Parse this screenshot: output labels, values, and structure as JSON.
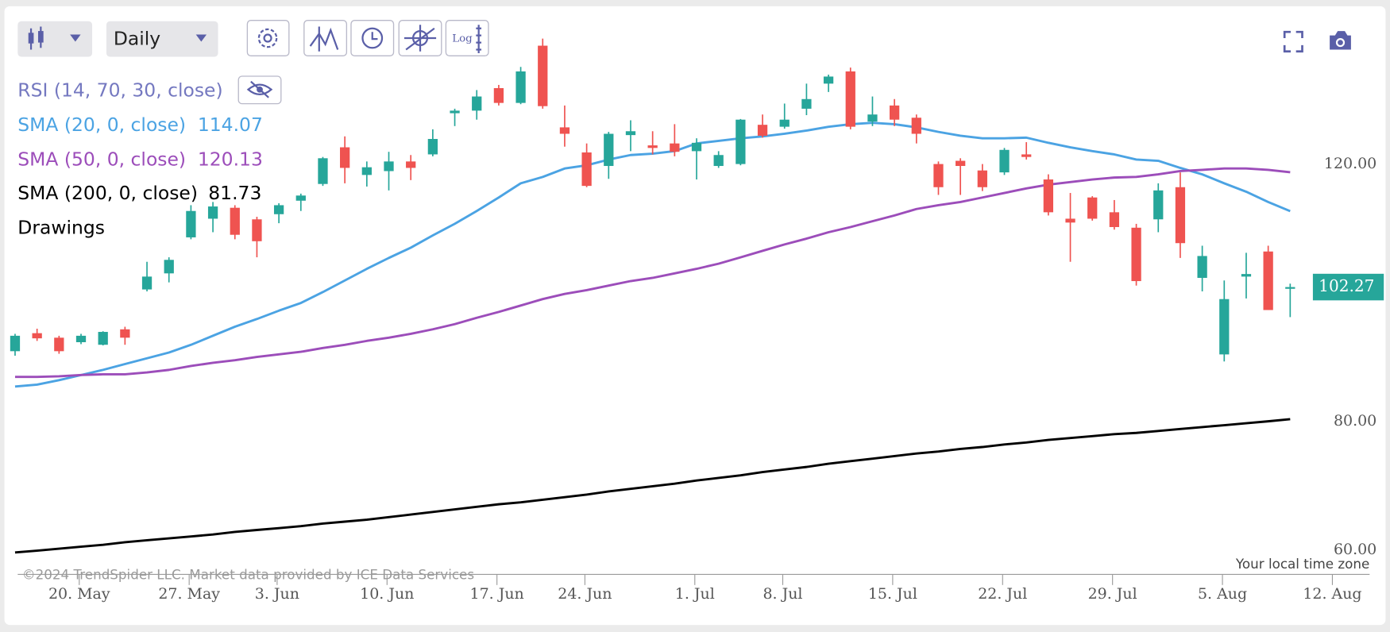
{
  "toolbar": {
    "interval": "Daily",
    "log_button": "Log"
  },
  "chart_data": {
    "type": "candlestick",
    "watermark": "©2024 TrendSpider LLC. Market data provided by ICE Data Services",
    "timezone_note": "Your local time zone",
    "rsi_label": "RSI (14, 70, 30, close)",
    "drawings_label": "Drawings",
    "up_color": "#26a69a",
    "down_color": "#ef5350",
    "categories": [
      null,
      null,
      null,
      "20. May",
      null,
      null,
      null,
      null,
      "27. May",
      null,
      null,
      null,
      "3. Jun",
      null,
      null,
      null,
      null,
      "10. Jun",
      null,
      null,
      null,
      null,
      "17. Jun",
      null,
      null,
      null,
      "24. Jun",
      null,
      null,
      null,
      null,
      "1. Jul",
      null,
      null,
      null,
      "8. Jul",
      null,
      null,
      null,
      null,
      "15. Jul",
      null,
      null,
      null,
      null,
      "22. Jul",
      null,
      null,
      null,
      null,
      "29. Jul",
      null,
      null,
      null,
      null,
      "5. Aug",
      null,
      null,
      null,
      null,
      "12. Aug"
    ],
    "open": [
      92.3,
      95.1,
      94.4,
      93.7,
      93.3,
      95.7,
      101.9,
      104.4,
      110.0,
      112.9,
      114.6,
      112.8,
      113.6,
      115.7,
      118.3,
      124.0,
      119.7,
      120.3,
      121.8,
      122.9,
      129.3,
      129.7,
      133.2,
      130.9,
      139.8,
      127.1,
      123.2,
      121.1,
      125.9,
      124.3,
      124.6,
      123.4,
      121.1,
      121.4,
      127.5,
      127.2,
      130.0,
      133.9,
      135.8,
      128.0,
      130.5,
      128.6,
      121.4,
      121.9,
      120.4,
      120.1,
      122.9,
      119.0,
      112.9,
      116.2,
      113.9,
      111.5,
      112.8,
      117.8,
      103.7,
      91.8,
      103.9,
      107.8,
      102.0,
      null,
      null
    ],
    "high": [
      95.0,
      95.8,
      94.7,
      95.0,
      95.4,
      96.1,
      106.2,
      106.9,
      115.0,
      115.5,
      115.0,
      113.2,
      115.3,
      116.8,
      122.5,
      125.7,
      121.8,
      123.3,
      122.8,
      126.8,
      130.0,
      132.9,
      133.7,
      136.5,
      140.9,
      130.5,
      124.6,
      126.4,
      128.2,
      126.5,
      127.6,
      125.4,
      123.4,
      128.4,
      129.1,
      130.8,
      133.9,
      135.3,
      136.4,
      131.9,
      131.5,
      129.1,
      121.8,
      122.3,
      121.4,
      123.9,
      124.8,
      119.8,
      116.9,
      116.4,
      115.8,
      112.1,
      118.4,
      120.1,
      108.7,
      103.3,
      107.6,
      108.7,
      102.8,
      null,
      null
    ],
    "low": [
      91.6,
      93.9,
      91.9,
      93.4,
      93.2,
      93.3,
      101.6,
      103.0,
      109.7,
      110.8,
      109.7,
      106.9,
      112.2,
      114.1,
      118.0,
      118.4,
      117.9,
      117.3,
      118.9,
      122.6,
      127.3,
      128.3,
      130.5,
      130.7,
      130.0,
      124.1,
      117.8,
      119.1,
      123.4,
      122.9,
      122.6,
      119.0,
      120.8,
      121.2,
      125.5,
      126.9,
      129.0,
      132.6,
      126.8,
      127.3,
      127.3,
      124.6,
      116.6,
      116.6,
      117.2,
      119.7,
      122.1,
      113.4,
      106.2,
      112.6,
      111.2,
      102.5,
      110.8,
      106.8,
      101.6,
      90.7,
      100.5,
      98.7,
      97.6,
      null,
      null
    ],
    "close": [
      94.7,
      94.3,
      92.3,
      94.7,
      95.3,
      94.4,
      103.9,
      106.5,
      114.1,
      114.8,
      110.4,
      109.4,
      115.0,
      116.5,
      122.3,
      120.8,
      120.9,
      121.8,
      120.8,
      125.3,
      129.7,
      131.9,
      130.9,
      135.8,
      130.4,
      126.1,
      118.0,
      126.1,
      126.5,
      123.9,
      123.3,
      124.7,
      122.8,
      128.3,
      125.8,
      128.3,
      131.5,
      135.0,
      127.2,
      129.1,
      128.3,
      126.1,
      117.8,
      121.1,
      117.8,
      123.6,
      122.5,
      113.9,
      112.3,
      112.9,
      111.6,
      103.2,
      117.3,
      109.1,
      107.1,
      100.4,
      104.3,
      98.7,
      102.27,
      null,
      null
    ],
    "series": [
      {
        "name": "SMA (20, 0, close)",
        "color": "#4ba3e3",
        "values": [
          86.8,
          87.1,
          87.8,
          88.6,
          89.4,
          90.3,
          91.2,
          92.1,
          93.3,
          94.7,
          96.1,
          97.3,
          98.6,
          99.8,
          101.5,
          103.3,
          105.1,
          106.8,
          108.4,
          110.3,
          112.1,
          114.1,
          116.2,
          118.4,
          119.4,
          120.7,
          121.2,
          122.1,
          122.8,
          123.0,
          123.4,
          124.6,
          125.0,
          125.4,
          125.7,
          126.1,
          126.6,
          127.2,
          127.6,
          127.8,
          127.6,
          127.1,
          126.4,
          125.8,
          125.4,
          125.4,
          125.5,
          124.7,
          124.0,
          123.4,
          122.9,
          122.1,
          121.9,
          120.8,
          119.8,
          118.4,
          117.1,
          115.5,
          114.07,
          null,
          null
        ]
      },
      {
        "name": "SMA (50, 0, close)",
        "color": "#9c4dba",
        "values": [
          88.3,
          88.3,
          88.4,
          88.6,
          88.7,
          88.7,
          89.0,
          89.4,
          90.0,
          90.5,
          90.9,
          91.4,
          91.8,
          92.2,
          92.8,
          93.3,
          93.9,
          94.4,
          95.0,
          95.7,
          96.5,
          97.5,
          98.4,
          99.4,
          100.4,
          101.2,
          101.8,
          102.5,
          103.2,
          103.7,
          104.4,
          105.1,
          105.9,
          106.9,
          107.9,
          108.9,
          109.8,
          110.8,
          111.6,
          112.5,
          113.4,
          114.4,
          115.0,
          115.5,
          116.2,
          116.9,
          117.6,
          118.2,
          118.6,
          119.0,
          119.3,
          119.4,
          119.8,
          120.3,
          120.5,
          120.7,
          120.7,
          120.5,
          120.13,
          null,
          null
        ]
      },
      {
        "name": "SMA (200, 0, close)",
        "color": "#000000",
        "values": [
          61.0,
          61.3,
          61.6,
          61.9,
          62.2,
          62.6,
          62.9,
          63.2,
          63.5,
          63.8,
          64.2,
          64.5,
          64.8,
          65.1,
          65.5,
          65.8,
          66.1,
          66.5,
          66.9,
          67.3,
          67.7,
          68.1,
          68.5,
          68.8,
          69.2,
          69.6,
          70.0,
          70.5,
          70.9,
          71.3,
          71.7,
          72.2,
          72.6,
          73.0,
          73.5,
          73.9,
          74.3,
          74.8,
          75.2,
          75.6,
          76.0,
          76.4,
          76.7,
          77.1,
          77.4,
          77.8,
          78.1,
          78.5,
          78.8,
          79.1,
          79.4,
          79.6,
          79.9,
          80.2,
          80.5,
          80.8,
          81.1,
          81.4,
          81.73,
          null,
          null
        ]
      }
    ],
    "ylim": [
      57.6,
      145.8
    ],
    "yticks": [
      {
        "value": 60,
        "label": "60.00"
      },
      {
        "value": 80,
        "label": "80.00"
      },
      {
        "value": 120,
        "label": "120.00"
      }
    ],
    "grid": false
  }
}
